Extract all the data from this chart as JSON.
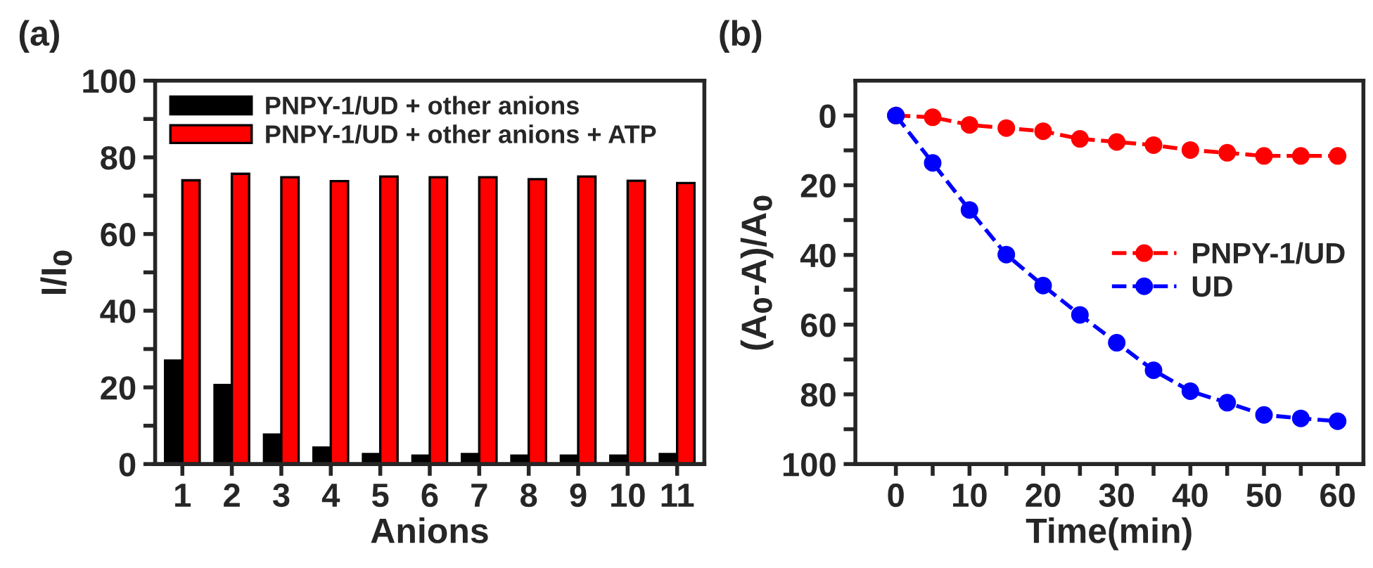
{
  "chart_data": [
    {
      "type": "bar",
      "title": "(a)",
      "xlabel": "Anions",
      "ylabel": "I/I$_{0}$",
      "categories": [
        "1",
        "2",
        "3",
        "4",
        "5",
        "6",
        "7",
        "8",
        "9",
        "10",
        "11"
      ],
      "series": [
        {
          "name": "PNPY-1/UD + other anions",
          "color": "#000000",
          "values": [
            27.0,
            20.6,
            7.7,
            4.3,
            2.6,
            2.2,
            2.6,
            2.2,
            2.2,
            2.2,
            2.6
          ]
        },
        {
          "name": "PNPY-1/UD + other anions + ATP",
          "color": "#ff0000",
          "values": [
            74.0,
            75.7,
            74.8,
            73.8,
            75.0,
            74.8,
            74.8,
            74.3,
            75.0,
            73.9,
            73.3
          ]
        }
      ],
      "ylim": [
        0,
        100
      ],
      "yticks": [
        0,
        {
          "value": 10,
          "label": null
        },
        20,
        {
          "value": 30,
          "label": null
        },
        40,
        {
          "value": 50,
          "label": null
        },
        60,
        {
          "value": 70,
          "label": null
        },
        80,
        {
          "value": 90,
          "label": null
        },
        100
      ],
      "legend": "top left",
      "grid": false
    },
    {
      "type": "line",
      "title": "(b)",
      "xlabel": "Time(min)",
      "ylabel": "(A$_{0}$-A)/A$_{0}$",
      "x": [
        0,
        5,
        10,
        15,
        20,
        25,
        30,
        35,
        40,
        45,
        50,
        55,
        60
      ],
      "series": [
        {
          "name": "PNPY-1/UD",
          "color": "#ff0000",
          "values": [
            0,
            0.5,
            2.7,
            3.6,
            4.5,
            6.7,
            7.6,
            8.5,
            9.9,
            10.7,
            11.6,
            11.6,
            11.6
          ]
        },
        {
          "name": "UD",
          "color": "#0000ff",
          "values": [
            0,
            13.6,
            27.1,
            39.9,
            48.8,
            57.2,
            65.2,
            73.1,
            79.1,
            82.4,
            85.9,
            86.9,
            87.7
          ]
        }
      ],
      "xlim": [
        -5.5,
        63.5
      ],
      "xticks": [
        0,
        {
          "value": 5,
          "label": null
        },
        10,
        {
          "value": 15,
          "label": null
        },
        20,
        {
          "value": 25,
          "label": null
        },
        30,
        {
          "value": 35,
          "label": null
        },
        40,
        {
          "value": 45,
          "label": null
        },
        50,
        {
          "value": 55,
          "label": null
        },
        60
      ],
      "ylim": [
        100,
        -10
      ],
      "yticks": [
        0,
        {
          "value": 10,
          "label": null
        },
        20,
        {
          "value": 30,
          "label": null
        },
        40,
        {
          "value": 50,
          "label": null
        },
        60,
        {
          "value": 70,
          "label": null
        },
        80,
        {
          "value": 90,
          "label": null
        },
        100
      ],
      "marker": "circle",
      "line_style": "dashed",
      "legend": "right",
      "grid": false
    }
  ]
}
